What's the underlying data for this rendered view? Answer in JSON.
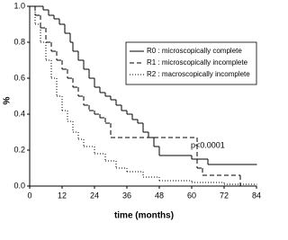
{
  "chart_data": {
    "type": "step",
    "xlabel": "time (months)",
    "ylabel": "%",
    "annotation": "p<0.0001",
    "xlim": [
      0,
      84
    ],
    "xticks": [
      0,
      12,
      24,
      36,
      48,
      60,
      72,
      84
    ],
    "ylim": [
      0,
      1
    ],
    "yticks": [
      {
        "value": 0,
        "label": "0.0"
      },
      0.2,
      0.4,
      0.6,
      0.8,
      {
        "value": 1,
        "label": "1.0"
      }
    ],
    "legend": "upper right",
    "series": [
      {
        "name": "R0 : microscopically complete",
        "color": "#000000",
        "dash": "solid",
        "x": [
          0,
          5,
          7,
          9,
          11,
          13,
          15,
          16,
          18,
          20,
          22,
          24,
          26,
          28,
          30,
          32,
          34,
          36,
          38,
          40,
          42,
          44,
          46,
          48,
          60,
          66,
          84
        ],
        "values": [
          1,
          0.98,
          0.95,
          0.93,
          0.9,
          0.85,
          0.8,
          0.75,
          0.7,
          0.65,
          0.6,
          0.55,
          0.52,
          0.5,
          0.48,
          0.45,
          0.42,
          0.4,
          0.37,
          0.35,
          0.3,
          0.27,
          0.22,
          0.17,
          0.15,
          0.12,
          0.12
        ]
      },
      {
        "name": "R1 : microscopically incomplete",
        "color": "#000000",
        "dash": "dashed",
        "x": [
          0,
          2,
          4,
          6,
          8,
          10,
          12,
          14,
          16,
          18,
          20,
          22,
          24,
          26,
          28,
          30,
          62,
          64,
          78,
          84
        ],
        "values": [
          1,
          0.95,
          0.88,
          0.8,
          0.75,
          0.7,
          0.65,
          0.6,
          0.55,
          0.5,
          0.45,
          0.42,
          0.4,
          0.38,
          0.35,
          0.27,
          0.1,
          0.06,
          0,
          0
        ]
      },
      {
        "name": "R2 : macroscopically incomplete",
        "color": "#000000",
        "dash": "dotted",
        "x": [
          0,
          2,
          4,
          6,
          8,
          10,
          12,
          14,
          16,
          18,
          20,
          24,
          28,
          32,
          36,
          42,
          48,
          60,
          72,
          84
        ],
        "values": [
          1,
          0.9,
          0.8,
          0.7,
          0.6,
          0.5,
          0.42,
          0.36,
          0.3,
          0.26,
          0.22,
          0.18,
          0.14,
          0.1,
          0.08,
          0.05,
          0.03,
          0.02,
          0.01,
          0.01
        ]
      }
    ]
  }
}
